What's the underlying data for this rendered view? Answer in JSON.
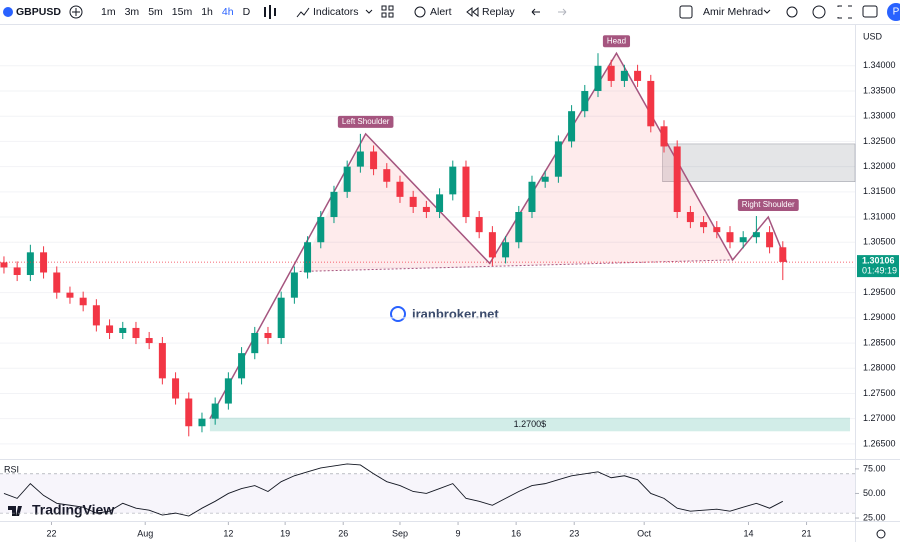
{
  "toolbar": {
    "symbol": "GBPUSD",
    "intervals": [
      "1m",
      "3m",
      "5m",
      "15m",
      "1h",
      "4h",
      "D"
    ],
    "active_interval": "4h",
    "indicators": "Indicators",
    "alert": "Alert",
    "replay": "Replay",
    "user": "Amir Mehrad",
    "avatar": "P"
  },
  "watermark": "iranbroker.net",
  "brand": "TradingView",
  "chart_data": [
    {
      "type": "candlestick",
      "currency": "USD",
      "open": [
        1.301,
        1.3,
        1.2985,
        1.303,
        1.299,
        1.295,
        1.294,
        1.2925,
        1.2885,
        1.287,
        1.288,
        1.286,
        1.285,
        1.278,
        1.274,
        1.2685,
        1.27,
        1.273,
        1.278,
        1.283,
        1.287,
        1.286,
        1.294,
        1.299,
        1.305,
        1.31,
        1.315,
        1.32,
        1.323,
        1.3195,
        1.317,
        1.314,
        1.312,
        1.311,
        1.3145,
        1.32,
        1.31,
        1.307,
        1.302,
        1.305,
        1.311,
        1.317,
        1.318,
        1.325,
        1.331,
        1.335,
        1.34,
        1.337,
        1.339,
        1.337,
        1.328,
        1.324,
        1.311,
        1.309,
        1.308,
        1.307,
        1.305,
        1.306,
        1.307,
        1.304
      ],
      "high": [
        1.3022,
        1.3012,
        1.3045,
        1.3042,
        1.3002,
        1.2962,
        1.2952,
        1.2937,
        1.2897,
        1.2892,
        1.2892,
        1.2872,
        1.2862,
        1.2792,
        1.2752,
        1.2712,
        1.2742,
        1.2792,
        1.2842,
        1.2882,
        1.2882,
        1.2952,
        1.3002,
        1.3062,
        1.3112,
        1.3162,
        1.3212,
        1.3265,
        1.3242,
        1.3207,
        1.3182,
        1.3152,
        1.3132,
        1.3157,
        1.3212,
        1.3212,
        1.3112,
        1.3082,
        1.3062,
        1.3122,
        1.3182,
        1.3192,
        1.3262,
        1.3322,
        1.3362,
        1.3425,
        1.3412,
        1.3402,
        1.3402,
        1.3382,
        1.3292,
        1.3252,
        1.3122,
        1.3102,
        1.3092,
        1.3082,
        1.3072,
        1.3102,
        1.3082,
        1.3052
      ],
      "low": [
        1.2988,
        1.2973,
        1.2973,
        1.2978,
        1.2938,
        1.2928,
        1.2913,
        1.2873,
        1.2858,
        1.2858,
        1.2848,
        1.2838,
        1.2768,
        1.2728,
        1.2665,
        1.2673,
        1.2688,
        1.2718,
        1.2768,
        1.2818,
        1.2848,
        1.2848,
        1.2928,
        1.2978,
        1.3038,
        1.3088,
        1.3138,
        1.3188,
        1.3183,
        1.3158,
        1.3128,
        1.3108,
        1.3098,
        1.3098,
        1.3133,
        1.3088,
        1.3058,
        1.3003,
        1.3008,
        1.3038,
        1.3098,
        1.3158,
        1.3168,
        1.3238,
        1.3298,
        1.3338,
        1.3358,
        1.3358,
        1.3358,
        1.3268,
        1.3228,
        1.3098,
        1.3078,
        1.3068,
        1.3058,
        1.3038,
        1.3038,
        1.3048,
        1.3028,
        1.2975
      ],
      "close": [
        1.3,
        1.2985,
        1.303,
        1.299,
        1.295,
        1.294,
        1.2925,
        1.2885,
        1.287,
        1.288,
        1.286,
        1.285,
        1.278,
        1.274,
        1.2685,
        1.27,
        1.273,
        1.278,
        1.283,
        1.287,
        1.286,
        1.294,
        1.299,
        1.305,
        1.31,
        1.315,
        1.32,
        1.323,
        1.3195,
        1.317,
        1.314,
        1.312,
        1.311,
        1.3145,
        1.32,
        1.31,
        1.307,
        1.302,
        1.305,
        1.311,
        1.317,
        1.318,
        1.325,
        1.331,
        1.335,
        1.34,
        1.337,
        1.339,
        1.337,
        1.328,
        1.324,
        1.311,
        1.309,
        1.308,
        1.307,
        1.305,
        1.306,
        1.307,
        1.304,
        1.3011
      ],
      "up_color": "#089981",
      "down_color": "#f23645",
      "xlim": [
        -0.3,
        64.47
      ],
      "ylim": [
        1.2622,
        1.3475
      ],
      "yticks": [
        {
          "value": 1.265,
          "label": "1.26500"
        },
        {
          "value": 1.27,
          "label": "1.27000"
        },
        {
          "value": 1.275,
          "label": "1.27500"
        },
        {
          "value": 1.28,
          "label": "1.28000"
        },
        {
          "value": 1.285,
          "label": "1.28500"
        },
        {
          "value": 1.29,
          "label": "1.29000"
        },
        {
          "value": 1.295,
          "label": "1.29500"
        },
        {
          "value": 1.3,
          "label": "1.30000"
        },
        {
          "value": 1.305,
          "label": "1.30500"
        },
        {
          "value": 1.31,
          "label": "1.31000"
        },
        {
          "value": 1.315,
          "label": "1.31500"
        },
        {
          "value": 1.32,
          "label": "1.32000"
        },
        {
          "value": 1.325,
          "label": "1.32500"
        },
        {
          "value": 1.33,
          "label": "1.33000"
        },
        {
          "value": 1.335,
          "label": "1.33500"
        },
        {
          "value": 1.34,
          "label": "1.34000"
        }
      ],
      "last_price": 1.30106,
      "countdown": "01:49:19",
      "pattern": {
        "x": [
          15.6,
          27.4,
          36.8,
          46.4,
          55.2,
          57.9,
          59.3
        ],
        "y": [
          1.27,
          1.3265,
          1.3008,
          1.3425,
          1.3015,
          1.31,
          1.301
        ]
      },
      "neckline": {
        "x": [
          22.4,
          55.2
        ],
        "y": [
          1.2992,
          1.3015
        ]
      },
      "pattern_labels": [
        "Left Shoulder",
        "Head",
        "Right Shoulder"
      ],
      "pattern_color": "#a5557f",
      "support_zone": {
        "from": 15.6,
        "low": 1.2675,
        "high": 1.2702,
        "label": "1.2700$"
      },
      "resistance_zone": {
        "from": 49.9,
        "low": 1.317,
        "high": 1.3245
      }
    },
    {
      "type": "line",
      "title": "RSI",
      "color": "#131722",
      "values": [
        50,
        45,
        60,
        48,
        40,
        38,
        36,
        30,
        32,
        40,
        35,
        33,
        28,
        30,
        27,
        35,
        42,
        50,
        55,
        58,
        52,
        62,
        68,
        72,
        76,
        78,
        80,
        79,
        70,
        62,
        58,
        52,
        50,
        55,
        60,
        45,
        42,
        38,
        45,
        52,
        58,
        60,
        64,
        68,
        70,
        72,
        66,
        68,
        64,
        50,
        45,
        35,
        32,
        33,
        34,
        32,
        36,
        40,
        35,
        42
      ],
      "xlim": [
        -0.3,
        64.47
      ],
      "ylim": [
        23,
        82
      ],
      "band": [
        30,
        70
      ],
      "yticks": [
        {
          "value": 25,
          "label": "25.00"
        },
        {
          "value": 50,
          "label": "50.00"
        },
        {
          "value": 75,
          "label": "75.00"
        }
      ],
      "xticks": [
        {
          "value": 3.6,
          "label": "22"
        },
        {
          "value": 10.7,
          "label": "Aug"
        },
        {
          "value": 17.0,
          "label": "12"
        },
        {
          "value": 21.3,
          "label": "19"
        },
        {
          "value": 25.7,
          "label": "26"
        },
        {
          "value": 30.0,
          "label": "Sep"
        },
        {
          "value": 34.4,
          "label": "9"
        },
        {
          "value": 38.8,
          "label": "16"
        },
        {
          "value": 43.2,
          "label": "23"
        },
        {
          "value": 48.5,
          "label": "Oct"
        },
        {
          "value": 56.4,
          "label": "14"
        },
        {
          "value": 60.8,
          "label": "21"
        }
      ]
    }
  ]
}
